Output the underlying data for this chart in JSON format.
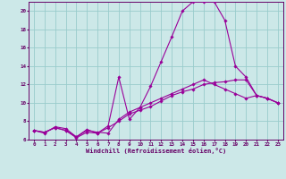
{
  "title": "",
  "xlabel": "Windchill (Refroidissement éolien,°C)",
  "background_color": "#cce8e8",
  "grid_color": "#99cccc",
  "line_color": "#990099",
  "spine_color": "#660066",
  "xlim": [
    -0.5,
    23.5
  ],
  "ylim": [
    6,
    21
  ],
  "yticks": [
    6,
    8,
    10,
    12,
    14,
    16,
    18,
    20
  ],
  "xticks": [
    0,
    1,
    2,
    3,
    4,
    5,
    6,
    7,
    8,
    9,
    10,
    11,
    12,
    13,
    14,
    15,
    16,
    17,
    18,
    19,
    20,
    21,
    22,
    23
  ],
  "line1_x": [
    0,
    1,
    2,
    3,
    4,
    5,
    6,
    7,
    8,
    9,
    10,
    11,
    12,
    13,
    14,
    15,
    16,
    17,
    18,
    19,
    20,
    21,
    22,
    23
  ],
  "line1_y": [
    7.0,
    6.8,
    7.3,
    7.0,
    6.2,
    6.8,
    6.7,
    7.3,
    8.0,
    8.8,
    9.2,
    9.6,
    10.2,
    10.8,
    11.2,
    11.5,
    12.0,
    12.2,
    12.3,
    12.5,
    12.5,
    10.8,
    10.5,
    10.0
  ],
  "line2_x": [
    0,
    1,
    2,
    3,
    4,
    5,
    6,
    7,
    8,
    9,
    10,
    11,
    12,
    13,
    14,
    15,
    16,
    17,
    18,
    19,
    20,
    21,
    22,
    23
  ],
  "line2_y": [
    7.0,
    6.7,
    7.4,
    7.2,
    6.3,
    7.1,
    6.7,
    7.5,
    12.8,
    8.2,
    9.5,
    11.8,
    14.5,
    17.2,
    20.0,
    21.0,
    21.0,
    21.0,
    19.0,
    14.0,
    12.8,
    10.8,
    10.5,
    10.0
  ],
  "line3_x": [
    0,
    1,
    2,
    3,
    4,
    5,
    6,
    7,
    8,
    9,
    10,
    11,
    12,
    13,
    14,
    15,
    16,
    17,
    18,
    19,
    20,
    21,
    22,
    23
  ],
  "line3_y": [
    7.0,
    6.8,
    7.3,
    7.0,
    6.3,
    7.0,
    6.8,
    6.7,
    8.2,
    9.0,
    9.5,
    10.0,
    10.5,
    11.0,
    11.5,
    12.0,
    12.5,
    12.0,
    11.5,
    11.0,
    10.5,
    10.8,
    10.5,
    10.0
  ]
}
